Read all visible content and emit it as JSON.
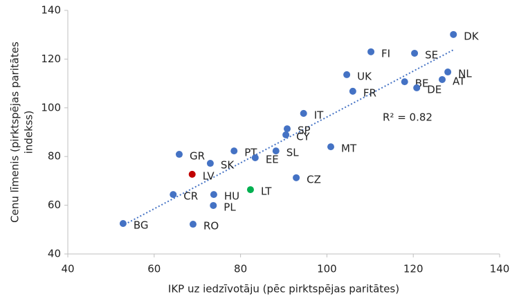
{
  "chart_data": {
    "type": "scatter",
    "x": [
      129.3,
      110.2,
      120.3,
      128,
      104.6,
      118,
      126.7,
      120.8,
      106,
      94.6,
      90.8,
      90.5,
      100.9,
      78.5,
      88.2,
      65.8,
      83.4,
      73,
      68.8,
      92.9,
      82.3,
      64.4,
      73.8,
      73.7,
      52.8,
      69
    ],
    "values": [
      130.1,
      123,
      122.4,
      114.7,
      113.6,
      110.7,
      111.6,
      108.2,
      106.8,
      97.7,
      91.4,
      88.9,
      84,
      82.3,
      82.3,
      80.9,
      79.5,
      77.2,
      72.7,
      71.3,
      66.4,
      64.4,
      64.4,
      59.9,
      52.5,
      52.2
    ],
    "labels": [
      "DK",
      "FI",
      "SE",
      "NL",
      "UK",
      "BE",
      "AT",
      "DE",
      "FR",
      "IT",
      "SP",
      "CY",
      "MT",
      "PT",
      "SL",
      "GR",
      "EE",
      "SK",
      "LV",
      "CZ",
      "LT",
      "CR",
      "HU",
      "PL",
      "BG",
      "RO"
    ],
    "colors": [
      "#4472c4",
      "#4472c4",
      "#4472c4",
      "#4472c4",
      "#4472c4",
      "#4472c4",
      "#4472c4",
      "#4472c4",
      "#4472c4",
      "#4472c4",
      "#4472c4",
      "#4472c4",
      "#4472c4",
      "#4472c4",
      "#4472c4",
      "#4472c4",
      "#4472c4",
      "#4472c4",
      "#c00000",
      "#4472c4",
      "#00b050",
      "#4472c4",
      "#4472c4",
      "#4472c4",
      "#4472c4",
      "#4472c4"
    ],
    "trendline": {
      "x": [
        53.9,
        129.3
      ],
      "values": [
        52.8,
        123.8
      ],
      "color": "#4472c4"
    },
    "annotation": "R² = 0.82",
    "xlabel": "IKP uz iedzīvotāju (pēc pirktspējas paritātes)",
    "ylabel": [
      "Cenu līmenis (pirktspējas paritātes",
      "indekss)"
    ],
    "xlim": [
      40,
      140
    ],
    "xticks": [
      40,
      60,
      80,
      100,
      120,
      140
    ],
    "ylim": [
      40,
      140
    ],
    "yticks": [
      40,
      60,
      80,
      100,
      120,
      140
    ]
  }
}
